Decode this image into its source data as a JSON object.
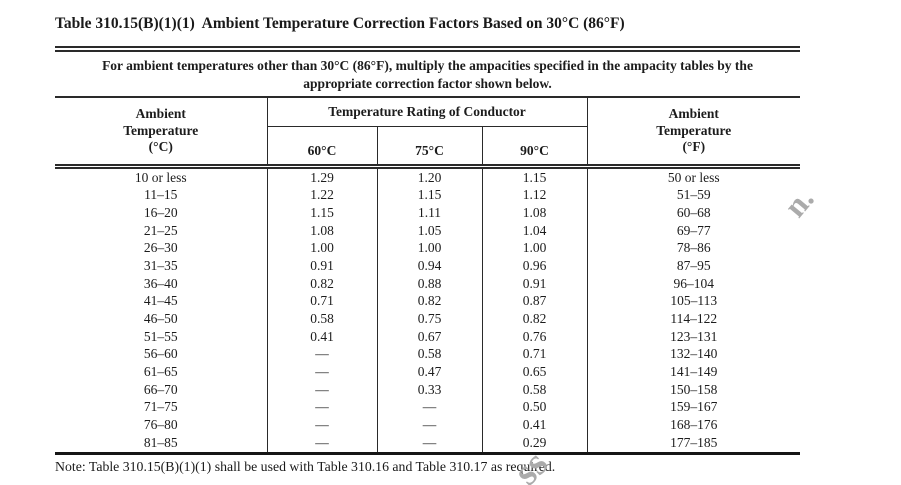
{
  "title": "Table 310.15(B)(1)(1)  Ambient Temperature Correction Factors Based on 30°C (86°F)",
  "table": {
    "head_note": "For ambient temperatures other than 30°C (86°F), multiply the ampacities specified in the ampacity tables by the\nappropriate correction factor shown below.",
    "headers": {
      "ambient_c": "Ambient\nTemperature\n(°C)",
      "rating_span": "Temperature Rating of Conductor",
      "rating_60": "60°C",
      "rating_75": "75°C",
      "rating_90": "90°C",
      "ambient_f": "Ambient\nTemperature\n(°F)"
    },
    "rows": [
      [
        "10 or less",
        "1.29",
        "1.20",
        "1.15",
        "50 or less"
      ],
      [
        "11–15",
        "1.22",
        "1.15",
        "1.12",
        "51–59"
      ],
      [
        "16–20",
        "1.15",
        "1.11",
        "1.08",
        "60–68"
      ],
      [
        "21–25",
        "1.08",
        "1.05",
        "1.04",
        "69–77"
      ],
      [
        "26–30",
        "1.00",
        "1.00",
        "1.00",
        "78–86"
      ],
      [
        "31–35",
        "0.91",
        "0.94",
        "0.96",
        "87–95"
      ],
      [
        "36–40",
        "0.82",
        "0.88",
        "0.91",
        "96–104"
      ],
      [
        "41–45",
        "0.71",
        "0.82",
        "0.87",
        "105–113"
      ],
      [
        "46–50",
        "0.58",
        "0.75",
        "0.82",
        "114–122"
      ],
      [
        "51–55",
        "0.41",
        "0.67",
        "0.76",
        "123–131"
      ],
      [
        "56–60",
        "—",
        "0.58",
        "0.71",
        "132–140"
      ],
      [
        "61–65",
        "—",
        "0.47",
        "0.65",
        "141–149"
      ],
      [
        "66–70",
        "—",
        "0.33",
        "0.58",
        "150–158"
      ],
      [
        "71–75",
        "—",
        "—",
        "0.50",
        "159–167"
      ],
      [
        "76–80",
        "—",
        "—",
        "0.41",
        "168–176"
      ],
      [
        "81–85",
        "—",
        "—",
        "0.29",
        "177–185"
      ]
    ],
    "foot_note": "Note: Table 310.15(B)(1)(1) shall be used with Table 310.16 and Table 310.17 as required."
  },
  "watermarks": {
    "right_fragment": "n.",
    "bottom_fragment": "ss",
    "color": "#ababab"
  },
  "colors": {
    "text": "#1c1c1c",
    "rule": "#2a2a2a",
    "background": "#ffffff"
  }
}
